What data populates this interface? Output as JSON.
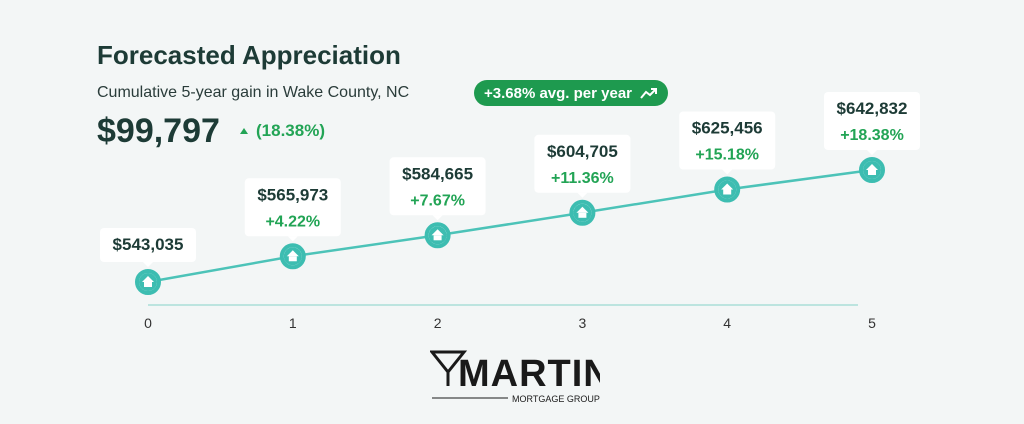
{
  "header": {
    "title": "Forecasted Appreciation",
    "subtitle": "Cumulative 5-year gain in Wake County, NC",
    "badge": "+3.68% avg. per year",
    "badge_icon": "trending-up-icon",
    "total_gain": "$99,797",
    "total_pct": "(18.38%)"
  },
  "colors": {
    "line": "#4cc3b8",
    "marker": "#3dbdb1",
    "badge": "#1e9a4f",
    "positive": "#22a455",
    "text": "#1d3b36"
  },
  "chart_data": {
    "type": "line",
    "categories": [
      "0",
      "1",
      "2",
      "3",
      "4",
      "5"
    ],
    "values": [
      543035,
      565973,
      584665,
      604705,
      625456,
      642832
    ],
    "labels": [
      "$543,035",
      "$565,973",
      "$584,665",
      "$604,705",
      "$625,456",
      "$642,832"
    ],
    "changes": [
      "",
      "+4.22%",
      "+7.67%",
      "+11.36%",
      "+15.18%",
      "+18.38%"
    ],
    "marker_icon": "house-icon",
    "grid": false
  },
  "logo": {
    "name": "MARTINI",
    "tagline": "MORTGAGE GROUP"
  }
}
